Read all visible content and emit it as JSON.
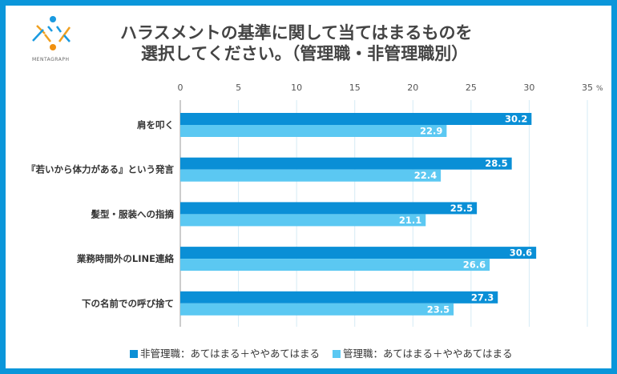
{
  "brand": {
    "name": "MENTAGRAPH"
  },
  "chart_data": {
    "type": "bar",
    "orientation": "horizontal",
    "title": [
      "ハラスメントの基準に関して当てはまるものを",
      "選択してください。（管理職・非管理職別）"
    ],
    "categories": [
      "肩を叩く",
      "『若いから体力がある』という発言",
      "髪型・服装への指摘",
      "業務時間外のLINE連絡",
      "下の名前での呼び捨て"
    ],
    "series": [
      {
        "name": "非管理職：あてはまる＋ややあてはまる",
        "color": "#0a8fd6",
        "values": [
          30.2,
          28.5,
          25.5,
          30.6,
          27.3
        ]
      },
      {
        "name": "管理職：あてはまる＋ややあてはまる",
        "color": "#5bc8f2",
        "values": [
          22.9,
          22.4,
          21.1,
          26.6,
          23.5
        ]
      }
    ],
    "xlim": [
      0,
      35
    ],
    "xticks": [
      "0",
      "5",
      "10",
      "15",
      "20",
      "25",
      "30",
      "35"
    ],
    "unit": "%",
    "grid": true,
    "legend": "bottom"
  }
}
